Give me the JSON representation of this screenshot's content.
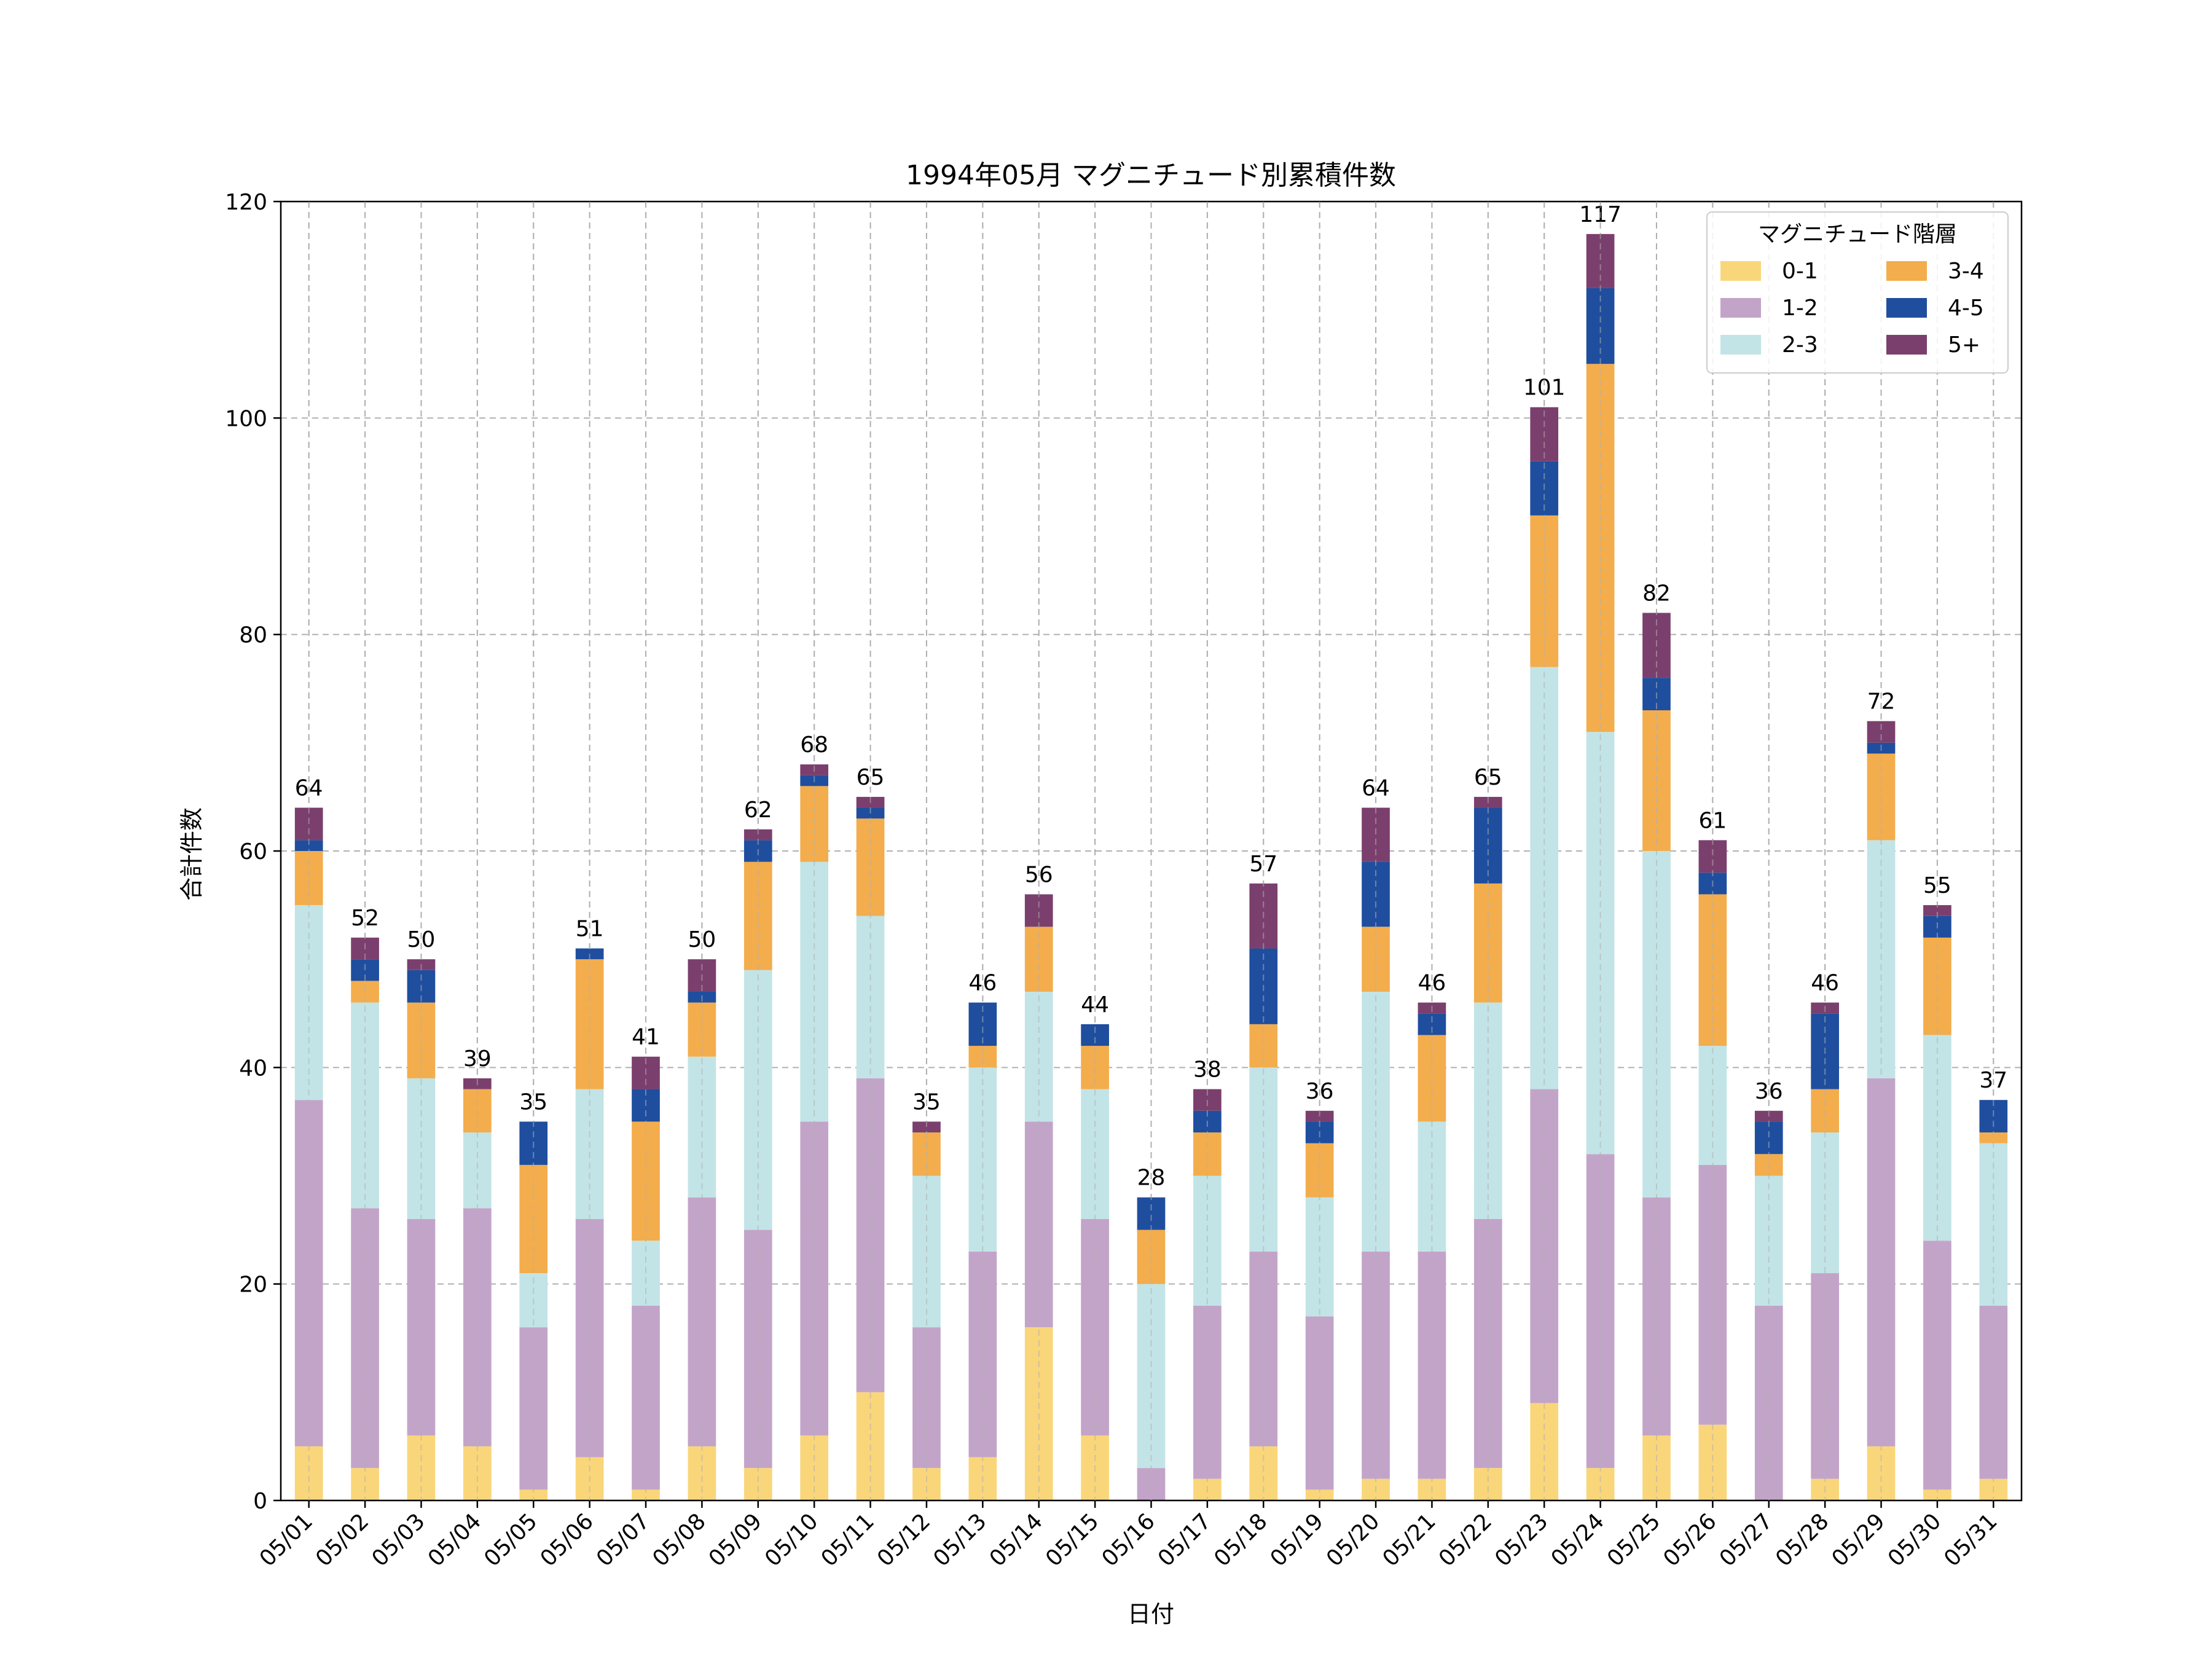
{
  "chart_data": {
    "type": "bar",
    "stacked": true,
    "title": "1994年05月 マグニチュード別累積件数",
    "xlabel": "日付",
    "ylabel": "合計件数",
    "ylim": [
      0,
      120
    ],
    "yticks": [
      0,
      20,
      40,
      60,
      80,
      100,
      120
    ],
    "grid": true,
    "legend_title": "マグニチュード階層",
    "legend_position": "top-right",
    "categories": [
      "05/01",
      "05/02",
      "05/03",
      "05/04",
      "05/05",
      "05/06",
      "05/07",
      "05/08",
      "05/09",
      "05/10",
      "05/11",
      "05/12",
      "05/13",
      "05/14",
      "05/15",
      "05/16",
      "05/17",
      "05/18",
      "05/19",
      "05/20",
      "05/21",
      "05/22",
      "05/23",
      "05/24",
      "05/25",
      "05/26",
      "05/27",
      "05/28",
      "05/29",
      "05/30",
      "05/31"
    ],
    "series": [
      {
        "name": "0-1",
        "color": "#FAD67A",
        "values": [
          5,
          3,
          6,
          5,
          1,
          4,
          1,
          5,
          3,
          6,
          10,
          3,
          4,
          16,
          6,
          0,
          2,
          5,
          1,
          2,
          2,
          3,
          9,
          3,
          6,
          7,
          0,
          2,
          5,
          1,
          2
        ]
      },
      {
        "name": "1-2",
        "color": "#C3A4C9",
        "values": [
          32,
          24,
          20,
          22,
          15,
          22,
          17,
          23,
          22,
          29,
          29,
          13,
          19,
          19,
          20,
          3,
          16,
          18,
          16,
          21,
          21,
          23,
          29,
          29,
          22,
          24,
          18,
          19,
          34,
          23,
          16
        ]
      },
      {
        "name": "2-3",
        "color": "#C2E4E6",
        "values": [
          18,
          19,
          13,
          7,
          5,
          12,
          6,
          13,
          24,
          24,
          15,
          14,
          17,
          12,
          12,
          17,
          12,
          17,
          11,
          24,
          12,
          20,
          39,
          39,
          32,
          11,
          12,
          13,
          22,
          19,
          15
        ]
      },
      {
        "name": "3-4",
        "color": "#F3AD4D",
        "values": [
          5,
          2,
          7,
          4,
          10,
          12,
          11,
          5,
          10,
          7,
          9,
          4,
          2,
          6,
          4,
          5,
          4,
          4,
          5,
          6,
          8,
          11,
          14,
          34,
          13,
          14,
          2,
          4,
          8,
          9,
          1
        ]
      },
      {
        "name": "4-5",
        "color": "#1F4E9E",
        "values": [
          1,
          2,
          3,
          0,
          4,
          1,
          3,
          1,
          2,
          1,
          1,
          0,
          4,
          0,
          2,
          3,
          2,
          7,
          2,
          6,
          2,
          7,
          5,
          7,
          3,
          2,
          3,
          7,
          1,
          2,
          3
        ]
      },
      {
        "name": "5+",
        "color": "#7B3F6E",
        "values": [
          3,
          2,
          1,
          1,
          0,
          0,
          3,
          3,
          1,
          1,
          1,
          1,
          0,
          3,
          0,
          0,
          2,
          6,
          1,
          5,
          1,
          1,
          5,
          5,
          6,
          3,
          1,
          1,
          2,
          1,
          0
        ]
      }
    ],
    "totals": [
      64,
      52,
      50,
      39,
      35,
      51,
      41,
      50,
      62,
      68,
      65,
      35,
      46,
      56,
      44,
      28,
      38,
      57,
      36,
      64,
      46,
      65,
      101,
      117,
      82,
      61,
      36,
      46,
      72,
      55,
      37
    ]
  }
}
